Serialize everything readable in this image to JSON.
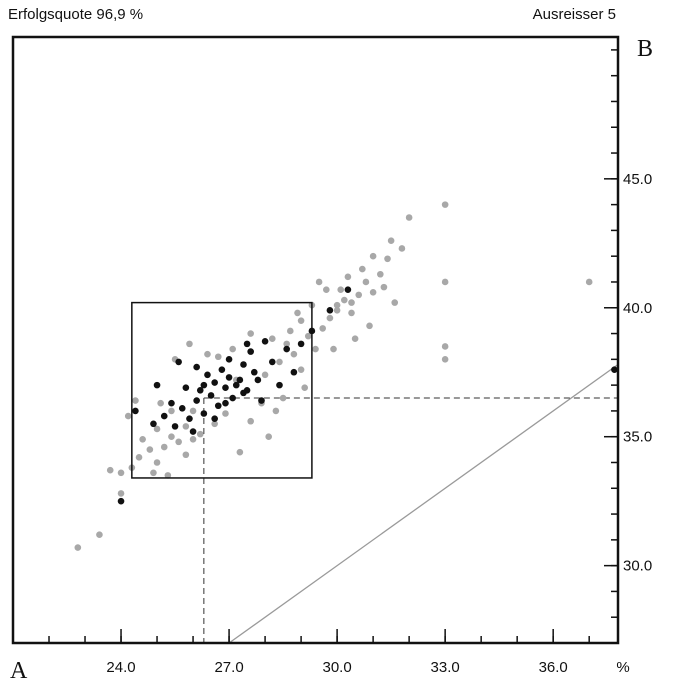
{
  "header": {
    "left_text": "Erfolgsquote 96,9 %",
    "right_text": "Ausreisser 5"
  },
  "chart_data": {
    "type": "scatter",
    "title": "",
    "xlabel": "%",
    "ylabel": "",
    "xlim": [
      21.0,
      37.8
    ],
    "ylim": [
      27.0,
      50.5
    ],
    "x_ticks": [
      "24.0",
      "27.0",
      "30.0",
      "33.0",
      "36.0"
    ],
    "x_tick_values": [
      24,
      27,
      30,
      33,
      36
    ],
    "y_ticks": [
      "30.0",
      "35.0",
      "40.0",
      "45.0"
    ],
    "y_tick_values": [
      30,
      35,
      40,
      45
    ],
    "corner_label_bottom_left": "A",
    "corner_label_top_right": "B",
    "identity_line": true,
    "grid": false,
    "colors": {
      "outer": "#a8a8a8",
      "inner": "#111111",
      "frame": "#111111"
    },
    "inner_box": {
      "x_min": 24.3,
      "x_max": 29.3,
      "y_min": 33.4,
      "y_max": 40.2
    },
    "reference_point": {
      "x": 26.3,
      "y": 36.5
    },
    "series": [
      {
        "role": "outer",
        "points": [
          [
            22.8,
            30.7
          ],
          [
            23.4,
            31.2
          ],
          [
            24.0,
            32.8
          ],
          [
            23.7,
            33.7
          ],
          [
            24.0,
            33.6
          ],
          [
            24.3,
            33.8
          ],
          [
            24.5,
            34.2
          ],
          [
            24.8,
            34.5
          ],
          [
            25.0,
            34.0
          ],
          [
            25.2,
            34.6
          ],
          [
            25.4,
            35.0
          ],
          [
            25.0,
            35.3
          ],
          [
            25.6,
            34.8
          ],
          [
            25.8,
            35.4
          ],
          [
            26.0,
            34.9
          ],
          [
            26.2,
            35.1
          ],
          [
            24.9,
            33.6
          ],
          [
            25.3,
            33.5
          ],
          [
            24.6,
            34.9
          ],
          [
            25.8,
            34.3
          ],
          [
            25.4,
            36.0
          ],
          [
            25.1,
            36.3
          ],
          [
            26.0,
            36.0
          ],
          [
            27.3,
            34.4
          ],
          [
            27.6,
            35.6
          ],
          [
            28.1,
            35.0
          ],
          [
            27.9,
            36.3
          ],
          [
            28.5,
            36.5
          ],
          [
            27.2,
            37.2
          ],
          [
            28.0,
            37.4
          ],
          [
            28.4,
            37.9
          ],
          [
            28.8,
            38.2
          ],
          [
            29.0,
            37.6
          ],
          [
            28.6,
            38.6
          ],
          [
            29.2,
            38.9
          ],
          [
            29.4,
            38.4
          ],
          [
            29.6,
            39.2
          ],
          [
            29.0,
            39.5
          ],
          [
            29.8,
            39.6
          ],
          [
            30.0,
            39.9
          ],
          [
            30.2,
            40.3
          ],
          [
            30.4,
            39.8
          ],
          [
            30.1,
            40.7
          ],
          [
            30.6,
            40.5
          ],
          [
            30.8,
            41.0
          ],
          [
            31.0,
            40.6
          ],
          [
            30.7,
            41.5
          ],
          [
            31.2,
            41.3
          ],
          [
            31.0,
            42.0
          ],
          [
            31.4,
            41.9
          ],
          [
            31.5,
            42.6
          ],
          [
            32.0,
            43.5
          ],
          [
            33.0,
            44.0
          ],
          [
            33.0,
            41.0
          ],
          [
            33.0,
            38.5
          ],
          [
            33.0,
            38.0
          ],
          [
            37.0,
            41.0
          ],
          [
            30.3,
            41.2
          ],
          [
            29.7,
            40.7
          ],
          [
            29.5,
            41.0
          ],
          [
            28.9,
            39.8
          ],
          [
            29.3,
            40.1
          ],
          [
            28.7,
            39.1
          ],
          [
            30.5,
            38.8
          ],
          [
            31.6,
            40.2
          ],
          [
            29.9,
            38.4
          ],
          [
            28.2,
            38.8
          ],
          [
            27.6,
            39.0
          ],
          [
            27.1,
            38.4
          ],
          [
            26.7,
            38.1
          ],
          [
            26.4,
            38.2
          ],
          [
            25.9,
            38.6
          ],
          [
            25.5,
            38.0
          ],
          [
            26.6,
            35.5
          ],
          [
            26.9,
            35.9
          ],
          [
            28.3,
            36.0
          ],
          [
            29.1,
            36.9
          ],
          [
            24.2,
            35.8
          ],
          [
            24.4,
            36.4
          ],
          [
            30.9,
            39.3
          ],
          [
            31.3,
            40.8
          ],
          [
            31.8,
            42.3
          ],
          [
            30.0,
            40.1
          ],
          [
            30.4,
            40.2
          ]
        ]
      },
      {
        "role": "inner",
        "points": [
          [
            24.0,
            32.5
          ],
          [
            24.9,
            35.5
          ],
          [
            25.2,
            35.8
          ],
          [
            25.5,
            35.4
          ],
          [
            25.7,
            36.1
          ],
          [
            25.9,
            35.7
          ],
          [
            26.1,
            36.4
          ],
          [
            26.3,
            35.9
          ],
          [
            26.5,
            36.6
          ],
          [
            26.7,
            36.2
          ],
          [
            26.9,
            36.9
          ],
          [
            27.1,
            36.5
          ],
          [
            27.3,
            37.2
          ],
          [
            27.5,
            36.8
          ],
          [
            27.7,
            37.5
          ],
          [
            27.2,
            37.0
          ],
          [
            26.6,
            37.1
          ],
          [
            26.2,
            36.8
          ],
          [
            26.8,
            37.6
          ],
          [
            27.4,
            37.8
          ],
          [
            27.8,
            37.2
          ],
          [
            28.2,
            37.9
          ],
          [
            28.6,
            38.4
          ],
          [
            29.0,
            38.6
          ],
          [
            29.3,
            39.1
          ],
          [
            29.8,
            39.9
          ],
          [
            30.3,
            40.7
          ],
          [
            25.6,
            37.9
          ],
          [
            25.0,
            37.0
          ],
          [
            24.4,
            36.0
          ],
          [
            25.8,
            36.9
          ],
          [
            26.4,
            37.4
          ],
          [
            27.0,
            38.0
          ],
          [
            27.6,
            38.3
          ],
          [
            28.0,
            38.7
          ],
          [
            27.9,
            36.4
          ],
          [
            28.4,
            37.0
          ],
          [
            26.0,
            35.2
          ],
          [
            26.6,
            35.7
          ],
          [
            25.4,
            36.3
          ],
          [
            27.0,
            37.3
          ],
          [
            26.9,
            36.3
          ],
          [
            26.3,
            37.0
          ],
          [
            27.4,
            36.7
          ],
          [
            28.8,
            37.5
          ],
          [
            37.7,
            37.6
          ],
          [
            27.5,
            38.6
          ],
          [
            26.1,
            37.7
          ]
        ]
      }
    ]
  }
}
